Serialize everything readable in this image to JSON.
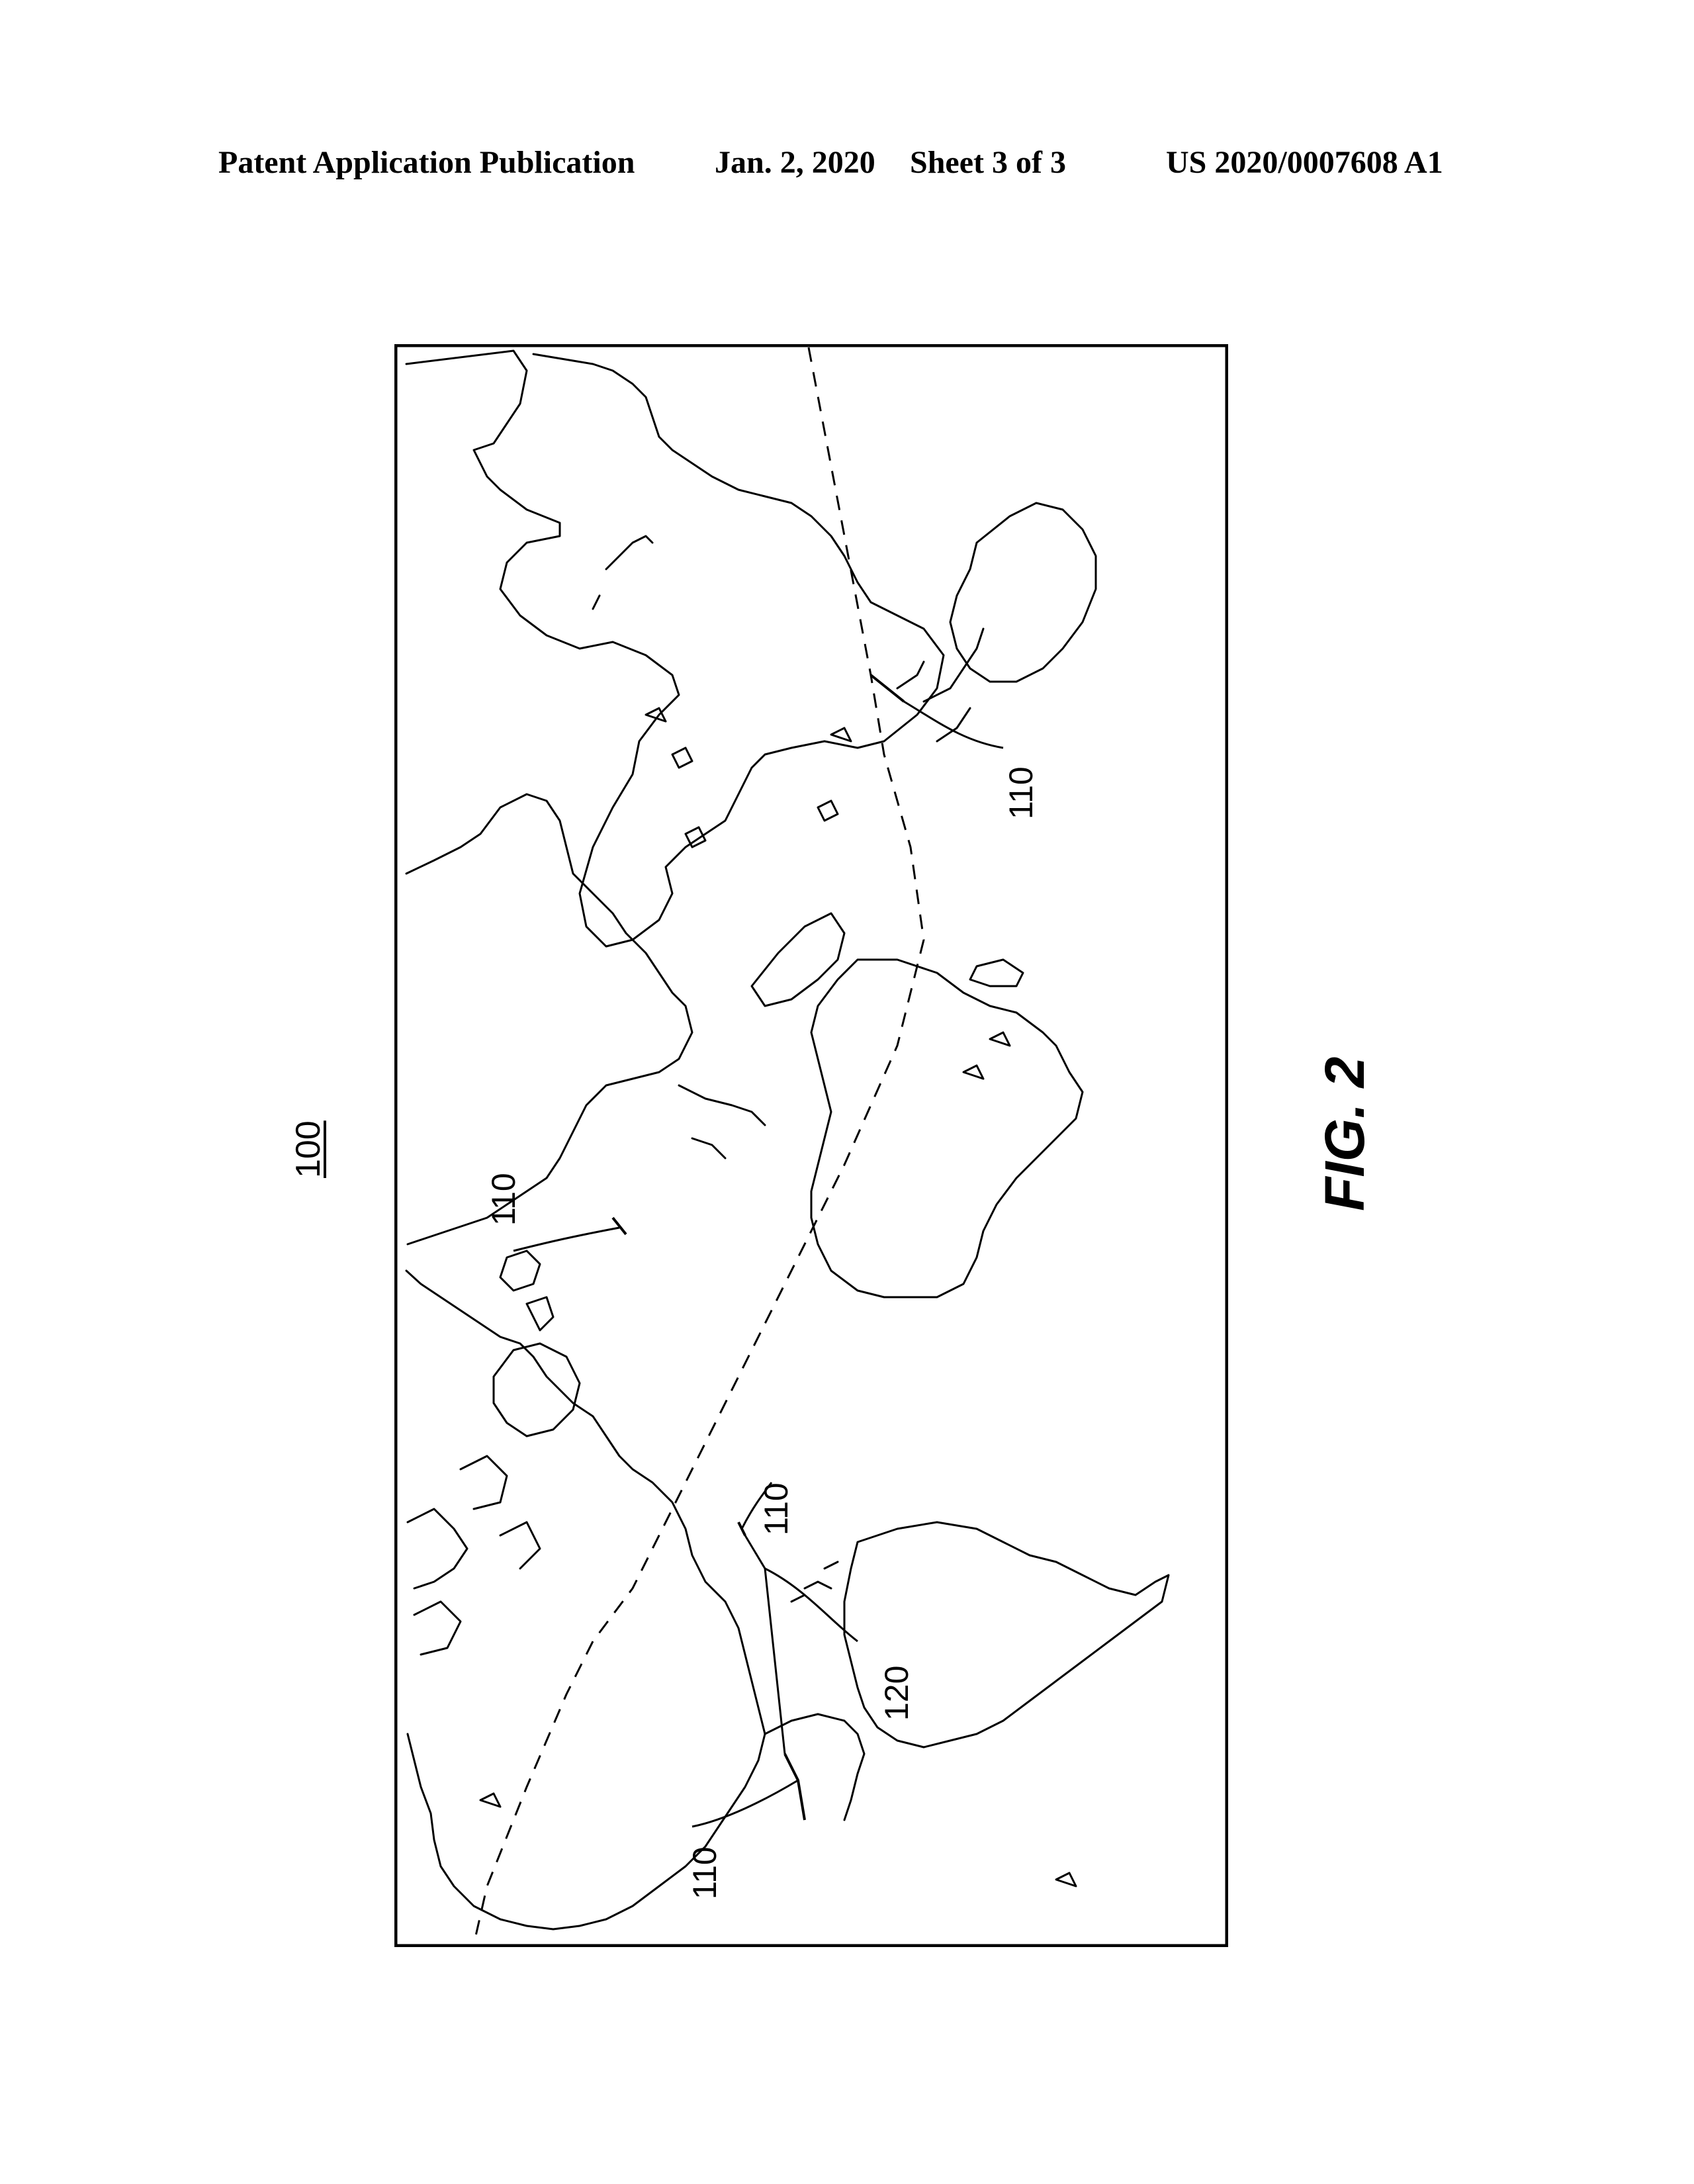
{
  "header": {
    "publication": "Patent Application Publication",
    "date": "Jan. 2, 2020",
    "sheet": "Sheet 3 of 3",
    "pub_number": "US 2020/0007608 A1"
  },
  "figure": {
    "reference_number": "100",
    "caption": "FIG. 2",
    "labels": {
      "a": "110",
      "b": "110",
      "c": "110",
      "d": "120",
      "e": "110"
    }
  },
  "colors": {
    "ink": "#000000",
    "paper": "#ffffff"
  }
}
